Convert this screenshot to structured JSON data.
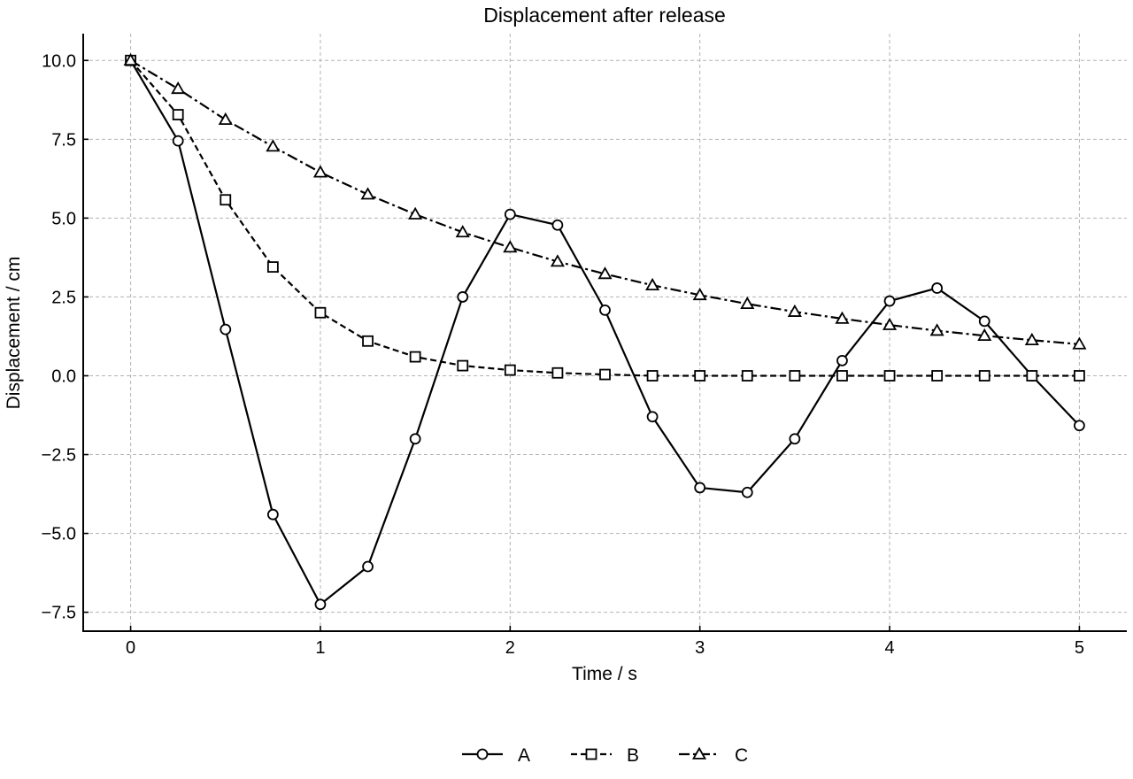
{
  "chart_data": {
    "type": "line",
    "title": "Displacement after release",
    "xlabel": "Time / s",
    "ylabel": "Displacement / cm",
    "xlim": [
      -0.25,
      5.25
    ],
    "ylim": [
      -8.1,
      10.85
    ],
    "x_ticks": [
      0,
      1,
      2,
      3,
      4,
      5
    ],
    "x_tick_labels": [
      "0",
      "1",
      "2",
      "3",
      "4",
      "5"
    ],
    "y_ticks": [
      10.0,
      7.5,
      5.0,
      2.5,
      0.0,
      -2.5,
      -5.0,
      -7.5
    ],
    "y_tick_labels": [
      "10.0",
      "7.5",
      "5.0",
      "2.5",
      "0.0",
      "−2.5",
      "−5.0",
      "−7.5"
    ],
    "grid": true,
    "legend_position": "bottom-center",
    "x": [
      0,
      0.25,
      0.5,
      0.75,
      1,
      1.25,
      1.5,
      1.75,
      2,
      2.25,
      2.5,
      2.75,
      3,
      3.25,
      3.5,
      3.75,
      4,
      4.25,
      4.5,
      4.75,
      5
    ],
    "series": [
      {
        "name": "A",
        "marker": "circle",
        "line_style": "solid",
        "color": "#000000",
        "values": [
          10.0,
          7.45,
          1.47,
          -4.4,
          -7.25,
          -6.05,
          -2.0,
          2.5,
          5.12,
          4.78,
          2.08,
          -1.3,
          -3.55,
          -3.7,
          -2.0,
          0.48,
          2.37,
          2.78,
          1.73,
          0.0,
          -1.58
        ]
      },
      {
        "name": "B",
        "marker": "square",
        "line_style": "dashed",
        "color": "#000000",
        "values": [
          10.0,
          8.28,
          5.58,
          3.45,
          2.0,
          1.1,
          0.6,
          0.32,
          0.18,
          0.09,
          0.04,
          0.0,
          0.0,
          0.0,
          0.0,
          0.0,
          0.0,
          0.0,
          0.0,
          0.0,
          0.0
        ]
      },
      {
        "name": "C",
        "marker": "triangle",
        "line_style": "dashdot",
        "color": "#000000",
        "values": [
          10.0,
          9.1,
          8.12,
          7.27,
          6.45,
          5.75,
          5.12,
          4.55,
          4.07,
          3.62,
          3.23,
          2.87,
          2.56,
          2.28,
          2.03,
          1.81,
          1.61,
          1.43,
          1.27,
          1.13,
          1.0
        ]
      }
    ]
  }
}
